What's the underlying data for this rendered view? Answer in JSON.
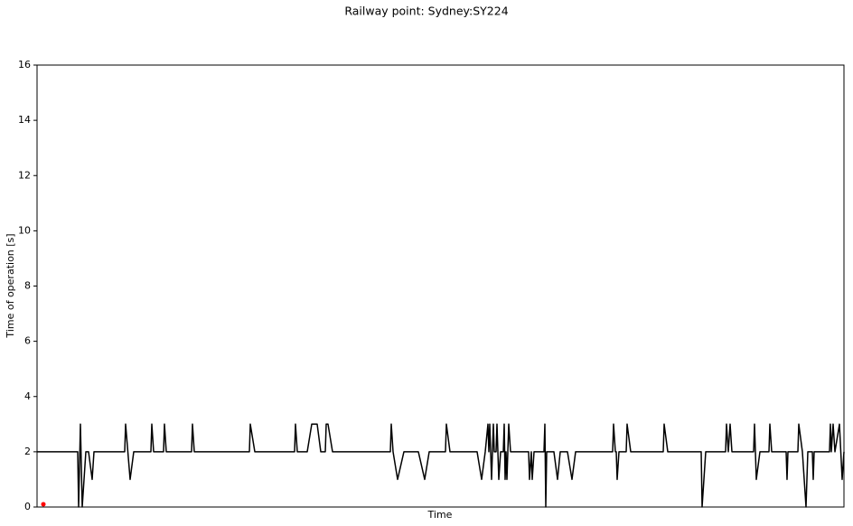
{
  "chart_data": {
    "type": "line",
    "title": "Railway point: Sydney:SY224",
    "xlabel": "Time",
    "ylabel": "Time of operation [s]",
    "xlim": [
      0,
      893
    ],
    "ylim": [
      0,
      16
    ],
    "yticks": [
      0,
      2,
      4,
      6,
      8,
      10,
      12,
      14,
      16
    ],
    "grid": false,
    "series": [
      {
        "color": "#000000",
        "x": [
          0,
          45,
          46,
          48,
          50,
          54,
          57,
          61,
          63,
          97,
          98,
          103,
          107,
          126,
          127,
          129,
          140,
          141,
          143,
          171,
          172,
          174,
          235,
          236,
          241,
          285,
          286,
          288,
          299,
          304,
          310,
          314,
          319,
          320,
          322,
          327,
          391,
          392,
          394,
          399,
          406,
          422,
          429,
          434,
          452,
          453,
          457,
          487,
          492,
          496,
          499,
          500,
          501,
          503,
          505,
          506,
          508,
          509,
          511,
          513,
          516,
          517,
          518,
          519,
          520,
          522,
          524,
          544,
          545,
          547,
          548,
          550,
          561,
          562,
          563,
          564,
          572,
          576,
          579,
          587,
          592,
          596,
          637,
          638,
          640,
          641,
          642,
          644,
          652,
          653,
          657,
          693,
          694,
          698,
          735,
          736,
          740,
          762,
          763,
          765,
          767,
          769,
          793,
          794,
          796,
          800,
          810,
          811,
          813,
          829,
          830,
          831,
          842,
          843,
          847,
          851,
          853,
          858,
          859,
          860,
          877,
          878,
          879,
          881,
          883,
          888,
          891,
          893
        ],
        "values": [
          2,
          2,
          0,
          3,
          0,
          2,
          2,
          1,
          2,
          2,
          3,
          1,
          2,
          2,
          3,
          2,
          2,
          3,
          2,
          2,
          3,
          2,
          2,
          3,
          2,
          2,
          3,
          2,
          2,
          3,
          3,
          2,
          2,
          3,
          3,
          2,
          2,
          3,
          2,
          1,
          2,
          2,
          1,
          2,
          2,
          3,
          2,
          2,
          1,
          2,
          3,
          2,
          3,
          1,
          3,
          2,
          2,
          3,
          1,
          2,
          2,
          3,
          1,
          2,
          1,
          3,
          2,
          2,
          1,
          2,
          1,
          2,
          2,
          3,
          0,
          2,
          2,
          1,
          2,
          2,
          1,
          2,
          2,
          3,
          2,
          2,
          1,
          2,
          2,
          3,
          2,
          2,
          3,
          2,
          2,
          0,
          2,
          2,
          3,
          2,
          3,
          2,
          2,
          3,
          1,
          2,
          2,
          3,
          2,
          2,
          1,
          2,
          2,
          3,
          2,
          0,
          2,
          2,
          1,
          2,
          2,
          3,
          2,
          3,
          2,
          3,
          1,
          2
        ]
      },
      {
        "color": "#ff0000",
        "marker": "o",
        "x": [
          7
        ],
        "values": [
          0.1
        ]
      }
    ]
  }
}
